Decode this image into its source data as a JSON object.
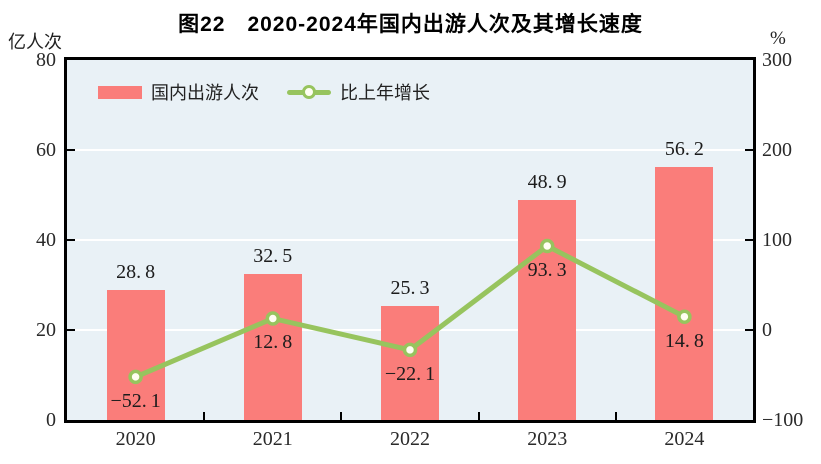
{
  "chart_data": {
    "type": "bar",
    "title": "图22　2020-2024年国内出游人次及其增长速度",
    "categories": [
      "2020",
      "2021",
      "2022",
      "2023",
      "2024"
    ],
    "series": [
      {
        "name": "国内出游人次",
        "type": "bar",
        "axis": "left",
        "unit": "亿人次",
        "values": [
          28.8,
          32.5,
          25.3,
          48.9,
          56.2
        ],
        "color": "#fa7d7a"
      },
      {
        "name": "比上年增长",
        "type": "line",
        "axis": "right",
        "unit": "%",
        "values": [
          -52.1,
          12.8,
          -22.1,
          93.3,
          14.8
        ],
        "color": "#97c45e",
        "marker_fill": "#fffef2"
      }
    ],
    "left_axis": {
      "label": "亿人次",
      "ylim": [
        0,
        80
      ],
      "ticks": [
        0,
        20,
        40,
        60,
        80
      ]
    },
    "right_axis": {
      "label": "%",
      "ylim": [
        -100,
        300
      ],
      "ticks": [
        -100,
        0,
        100,
        200,
        300
      ]
    },
    "gridlines": {
      "left_values": [
        20,
        40,
        60
      ],
      "color": "#ffffff"
    },
    "legend": {
      "position": "top-left-inside",
      "entries": [
        "国内出游人次",
        "比上年增长"
      ]
    },
    "plot_bg": "#e9f1f6",
    "axis_color": "#000000"
  }
}
